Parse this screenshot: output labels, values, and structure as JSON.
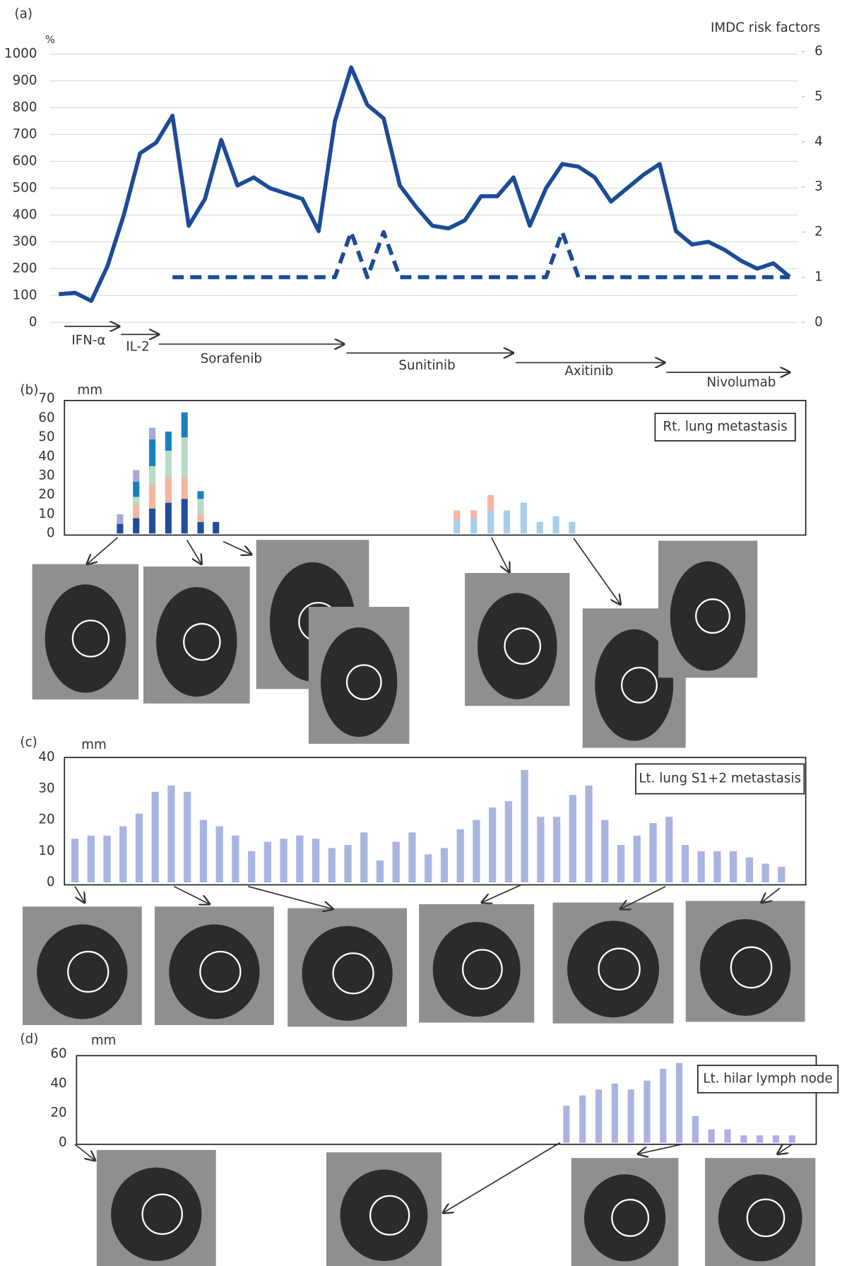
{
  "chart_data": [
    {
      "type": "line",
      "panel_label": "(a)",
      "y_label": "%",
      "y2_label": "IMDC risk factors",
      "series": [
        {
          "color": "#1c4b97",
          "values": [
            105,
            110,
            80,
            210,
            400,
            630,
            670,
            770,
            360,
            460,
            680,
            510,
            540,
            500,
            480,
            460,
            340,
            750,
            950,
            810,
            760,
            510,
            430,
            360,
            350,
            380,
            470,
            470,
            540,
            360,
            500,
            590,
            580,
            540,
            450,
            500,
            550,
            590,
            340,
            290,
            300,
            270,
            230,
            200,
            220,
            170
          ]
        },
        {
          "color": "#1c4b97",
          "axis": "y2",
          "dashed": true,
          "values": [
            null,
            null,
            null,
            null,
            null,
            null,
            null,
            1,
            1,
            1,
            1,
            1,
            1,
            1,
            1,
            1,
            1,
            1,
            2,
            1,
            2,
            1,
            1,
            1,
            1,
            1,
            1,
            1,
            1,
            1,
            1,
            2,
            1,
            1,
            1,
            1,
            1,
            1,
            1,
            1,
            1,
            1,
            1,
            1,
            1,
            1
          ]
        }
      ],
      "ylim": [
        0,
        1000
      ],
      "yticks": [
        0,
        100,
        200,
        300,
        400,
        500,
        600,
        700,
        800,
        900,
        1000
      ],
      "y2lim": [
        0,
        6
      ],
      "y2ticks": [
        0,
        1,
        2,
        3,
        4,
        5,
        6
      ],
      "grid": true,
      "annotations": [
        "IFN-α",
        "IL-2",
        "Sorafenib",
        "Sunitinib",
        "Axitinib",
        "Nivolumab"
      ]
    },
    {
      "type": "stacked_bar",
      "panel_label": "(b)",
      "y_label": "mm",
      "box_label": "Rt. lung metastasis",
      "series": [
        {
          "color": "#1f4e9c",
          "values": [
            5,
            8,
            13,
            16,
            18,
            6,
            6,
            null,
            null,
            null,
            null,
            null,
            null,
            null,
            null
          ]
        },
        {
          "color": "#a9cdea",
          "values": [
            null,
            null,
            null,
            null,
            null,
            null,
            null,
            7,
            8,
            12,
            12,
            16,
            6,
            9,
            6
          ]
        },
        {
          "color": "#f4b6a0",
          "values": [
            null,
            7,
            12,
            13,
            11,
            4,
            null,
            5,
            4,
            8,
            null,
            null,
            null,
            null,
            null
          ]
        },
        {
          "color": "#b9dcc0",
          "values": [
            null,
            4,
            10,
            14,
            21,
            8,
            null,
            null,
            null,
            null,
            null,
            null,
            null,
            null,
            null
          ]
        },
        {
          "color": "#1a7fc0",
          "values": [
            null,
            8,
            14,
            10,
            13,
            4,
            null,
            null,
            null,
            null,
            null,
            null,
            null,
            null,
            null
          ]
        },
        {
          "color": "#a3acd8",
          "values": [
            5,
            6,
            6,
            null,
            null,
            null,
            null,
            null,
            null,
            null,
            null,
            null,
            null,
            null,
            null
          ]
        }
      ],
      "ylim": [
        0,
        70
      ],
      "yticks": [
        0,
        10,
        20,
        30,
        40,
        50,
        60,
        70
      ]
    },
    {
      "type": "bar",
      "panel_label": "(c)",
      "y_label": "mm",
      "box_label": "Lt. lung S1+2 metastasis",
      "color": "#a9b4e0",
      "values": [
        14,
        15,
        15,
        18,
        22,
        29,
        31,
        29,
        20,
        18,
        15,
        10,
        13,
        14,
        15,
        14,
        11,
        12,
        16,
        7,
        13,
        16,
        9,
        11,
        17,
        20,
        24,
        26,
        36,
        21,
        21,
        28,
        31,
        20,
        12,
        15,
        19,
        21,
        12,
        10,
        10,
        10,
        8,
        6,
        5
      ],
      "ylim": [
        0,
        40
      ],
      "yticks": [
        0,
        10,
        20,
        30,
        40
      ]
    },
    {
      "type": "bar",
      "panel_label": "(d)",
      "y_label": "mm",
      "box_label": "Lt. hilar lymph node",
      "color": "#a9b4e0",
      "values": [
        25,
        32,
        36,
        40,
        36,
        42,
        50,
        54,
        18,
        9,
        9,
        5,
        5,
        5,
        5
      ],
      "ylim": [
        0,
        60
      ],
      "yticks": [
        0,
        20,
        40,
        60
      ]
    }
  ]
}
